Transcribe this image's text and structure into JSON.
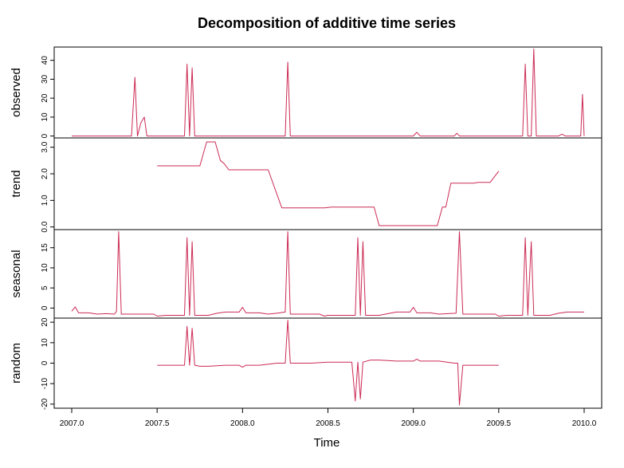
{
  "chart_data": {
    "type": "line",
    "title": "Decomposition of additive time series",
    "xlabel": "Time",
    "xlim": [
      2007.0,
      2010.0
    ],
    "x_ticks": [
      "2007.0",
      "2007.5",
      "2008.0",
      "2008.5",
      "2009.0",
      "2009.5",
      "2010.0"
    ],
    "line_color": "#cc2a55",
    "panels": [
      {
        "name": "observed",
        "ylabel": "observed",
        "ylim": [
          -1,
          47
        ],
        "y_ticks": [
          "0",
          "10",
          "20",
          "30",
          "40"
        ],
        "points": [
          [
            2007.0,
            0
          ],
          [
            2007.35,
            0
          ],
          [
            2007.37,
            31
          ],
          [
            2007.385,
            0
          ],
          [
            2007.405,
            7
          ],
          [
            2007.425,
            10
          ],
          [
            2007.44,
            0
          ],
          [
            2007.66,
            0
          ],
          [
            2007.675,
            38
          ],
          [
            2007.69,
            0
          ],
          [
            2007.705,
            36
          ],
          [
            2007.72,
            0
          ],
          [
            2008.25,
            0
          ],
          [
            2008.265,
            39
          ],
          [
            2008.28,
            0
          ],
          [
            2009.0,
            0
          ],
          [
            2009.02,
            2
          ],
          [
            2009.04,
            0
          ],
          [
            2009.24,
            0
          ],
          [
            2009.255,
            1.5
          ],
          [
            2009.27,
            0
          ],
          [
            2009.64,
            0
          ],
          [
            2009.655,
            38
          ],
          [
            2009.67,
            0
          ],
          [
            2009.69,
            0
          ],
          [
            2009.705,
            46
          ],
          [
            2009.72,
            0
          ],
          [
            2009.85,
            0
          ],
          [
            2009.87,
            1
          ],
          [
            2009.89,
            0
          ],
          [
            2009.98,
            0
          ],
          [
            2009.99,
            22
          ],
          [
            2010.0,
            0
          ]
        ]
      },
      {
        "name": "trend",
        "ylabel": "trend",
        "ylim": [
          -0.1,
          3.35
        ],
        "y_ticks": [
          "0.0",
          "1.0",
          "2.0",
          "3.0"
        ],
        "points": [
          [
            2007.5,
            2.3
          ],
          [
            2007.58,
            2.3
          ],
          [
            2007.66,
            2.3
          ],
          [
            2007.75,
            2.3
          ],
          [
            2007.79,
            3.2
          ],
          [
            2007.84,
            3.2
          ],
          [
            2007.87,
            2.5
          ],
          [
            2007.89,
            2.4
          ],
          [
            2007.92,
            2.15
          ],
          [
            2007.96,
            2.15
          ],
          [
            2008.0,
            2.15
          ],
          [
            2008.1,
            2.15
          ],
          [
            2008.15,
            2.15
          ],
          [
            2008.23,
            0.72
          ],
          [
            2008.35,
            0.72
          ],
          [
            2008.48,
            0.72
          ],
          [
            2008.52,
            0.75
          ],
          [
            2008.6,
            0.75
          ],
          [
            2008.7,
            0.75
          ],
          [
            2008.74,
            0.75
          ],
          [
            2008.77,
            0.75
          ],
          [
            2008.8,
            0.05
          ],
          [
            2008.9,
            0.05
          ],
          [
            2009.0,
            0.05
          ],
          [
            2009.1,
            0.05
          ],
          [
            2009.14,
            0.05
          ],
          [
            2009.17,
            0.75
          ],
          [
            2009.19,
            0.75
          ],
          [
            2009.22,
            1.65
          ],
          [
            2009.3,
            1.65
          ],
          [
            2009.35,
            1.65
          ],
          [
            2009.38,
            1.68
          ],
          [
            2009.45,
            1.68
          ],
          [
            2009.5,
            2.1
          ]
        ]
      },
      {
        "name": "seasonal",
        "ylabel": "seasonal",
        "ylim": [
          -2.5,
          19.5
        ],
        "y_ticks": [
          "0",
          "5",
          "10",
          "15"
        ],
        "points": [
          [
            2007.0,
            -0.8
          ],
          [
            2007.02,
            0.3
          ],
          [
            2007.04,
            -1.2
          ],
          [
            2007.1,
            -1.2
          ],
          [
            2007.15,
            -1.5
          ],
          [
            2007.2,
            -1.4
          ],
          [
            2007.25,
            -1.5
          ],
          [
            2007.262,
            -0.8
          ],
          [
            2007.275,
            19
          ],
          [
            2007.29,
            -1.5
          ],
          [
            2007.48,
            -1.5
          ],
          [
            2007.5,
            -2.0
          ],
          [
            2007.55,
            -1.8
          ],
          [
            2007.66,
            -1.8
          ],
          [
            2007.675,
            17.5
          ],
          [
            2007.69,
            -1.8
          ],
          [
            2007.705,
            16.5
          ],
          [
            2007.72,
            -1.8
          ],
          [
            2007.8,
            -1.8
          ],
          [
            2007.85,
            -1.3
          ],
          [
            2007.9,
            -1.0
          ],
          [
            2007.98,
            -1.0
          ],
          [
            2008.0,
            0.2
          ],
          [
            2008.02,
            -1.2
          ],
          [
            2008.1,
            -1.2
          ],
          [
            2008.15,
            -1.5
          ],
          [
            2008.2,
            -1.3
          ],
          [
            2008.25,
            -1.0
          ],
          [
            2008.265,
            19
          ],
          [
            2008.28,
            -1.5
          ],
          [
            2008.45,
            -1.5
          ],
          [
            2008.48,
            -2.0
          ],
          [
            2008.5,
            -1.8
          ],
          [
            2008.66,
            -1.8
          ],
          [
            2008.675,
            17.5
          ],
          [
            2008.69,
            -1.8
          ],
          [
            2008.705,
            16.5
          ],
          [
            2008.72,
            -1.8
          ],
          [
            2008.8,
            -1.8
          ],
          [
            2008.9,
            -1.0
          ],
          [
            2008.98,
            -1.0
          ],
          [
            2009.0,
            0.2
          ],
          [
            2009.02,
            -1.2
          ],
          [
            2009.1,
            -1.2
          ],
          [
            2009.15,
            -1.5
          ],
          [
            2009.2,
            -1.4
          ],
          [
            2009.25,
            -1.3
          ],
          [
            2009.27,
            19
          ],
          [
            2009.29,
            -1.5
          ],
          [
            2009.48,
            -1.5
          ],
          [
            2009.5,
            -2.0
          ],
          [
            2009.55,
            -1.8
          ],
          [
            2009.64,
            -1.8
          ],
          [
            2009.655,
            17.5
          ],
          [
            2009.67,
            -1.8
          ],
          [
            2009.69,
            16.5
          ],
          [
            2009.705,
            -1.8
          ],
          [
            2009.8,
            -1.8
          ],
          [
            2009.85,
            -1.3
          ],
          [
            2009.9,
            -1.0
          ],
          [
            2009.95,
            -1.0
          ],
          [
            2010.0,
            -1.0
          ]
        ]
      },
      {
        "name": "random",
        "ylabel": "random",
        "ylim": [
          -22,
          22
        ],
        "y_ticks": [
          "-20",
          "-10",
          "0",
          "10",
          "20"
        ],
        "points": [
          [
            2007.5,
            -1
          ],
          [
            2007.66,
            -1
          ],
          [
            2007.675,
            18
          ],
          [
            2007.69,
            -1
          ],
          [
            2007.705,
            17
          ],
          [
            2007.72,
            -1
          ],
          [
            2007.75,
            -1.5
          ],
          [
            2007.8,
            -1.5
          ],
          [
            2007.9,
            -1
          ],
          [
            2007.98,
            -1
          ],
          [
            2008.0,
            -2
          ],
          [
            2008.02,
            -1
          ],
          [
            2008.1,
            -1
          ],
          [
            2008.2,
            0
          ],
          [
            2008.25,
            0
          ],
          [
            2008.265,
            21
          ],
          [
            2008.28,
            0
          ],
          [
            2008.4,
            0
          ],
          [
            2008.5,
            0.5
          ],
          [
            2008.62,
            0.5
          ],
          [
            2008.64,
            0.5
          ],
          [
            2008.66,
            -18.5
          ],
          [
            2008.675,
            0.5
          ],
          [
            2008.69,
            -17.5
          ],
          [
            2008.705,
            0.5
          ],
          [
            2008.75,
            1.5
          ],
          [
            2008.8,
            1.5
          ],
          [
            2008.9,
            1
          ],
          [
            2009.0,
            1
          ],
          [
            2009.02,
            2
          ],
          [
            2009.04,
            1
          ],
          [
            2009.15,
            1
          ],
          [
            2009.24,
            0
          ],
          [
            2009.26,
            0
          ],
          [
            2009.27,
            -20.5
          ],
          [
            2009.29,
            -1
          ],
          [
            2009.5,
            -1
          ]
        ]
      }
    ]
  }
}
